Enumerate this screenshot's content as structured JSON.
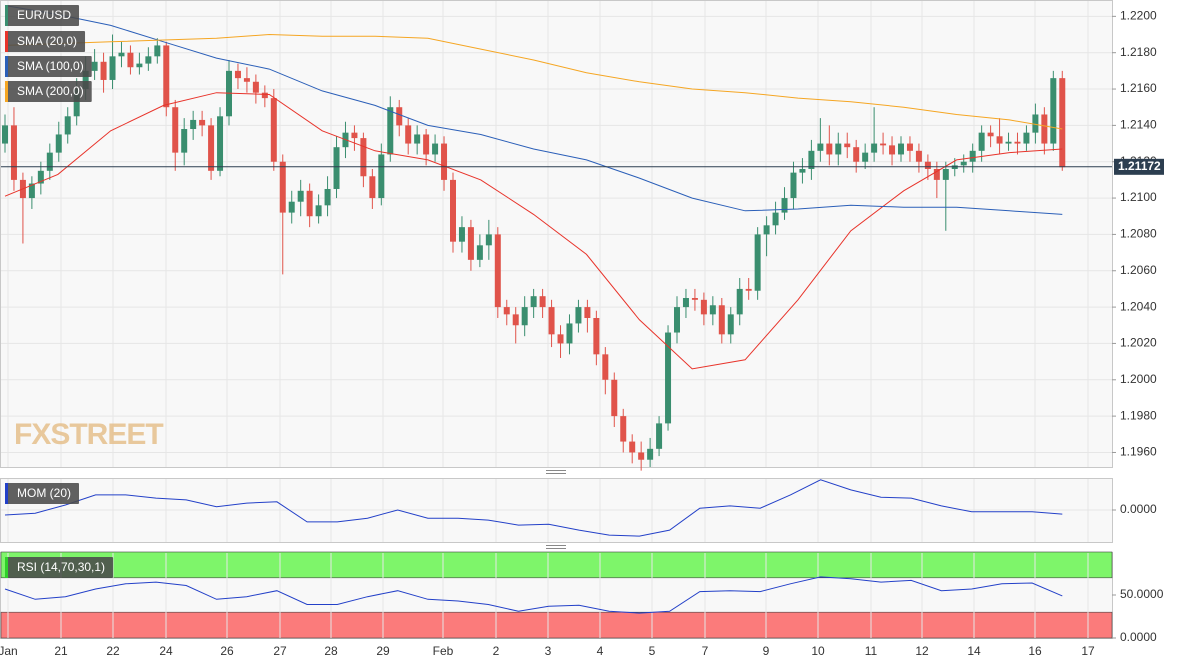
{
  "chart_data": [
    {
      "type": "candlestick",
      "symbol": "EUR/USD",
      "watermark": "FXSTREET",
      "x_labels": [
        "Jan",
        "21",
        "22",
        "24",
        "26",
        "27",
        "28",
        "29",
        "Feb",
        "2",
        "3",
        "4",
        "5",
        "7",
        "9",
        "10",
        "11",
        "12",
        "14",
        "16",
        "17"
      ],
      "up_color": "#3a8e6f",
      "down_color": "#e0534a",
      "open": [
        1.213,
        1.214,
        1.211,
        1.21,
        1.2108,
        1.2115,
        1.2125,
        1.2135,
        1.2145,
        1.216,
        1.217,
        1.2175,
        1.2165,
        1.2178,
        1.218,
        1.2172,
        1.2174,
        1.2178,
        1.2184,
        1.215,
        1.2125,
        1.2138,
        1.2143,
        1.214,
        1.2115,
        1.2145,
        1.217,
        1.2166,
        1.2164,
        1.2158,
        1.2155,
        1.212,
        1.2092,
        1.2098,
        1.2104,
        1.209,
        1.2096,
        1.2105,
        1.2128,
        1.2136,
        1.2133,
        1.2112,
        1.21,
        1.2124,
        1.215,
        1.214,
        1.213,
        1.2135,
        1.2124,
        1.213,
        1.211,
        1.2076,
        1.2084,
        1.2066,
        1.2074,
        1.208,
        1.204,
        1.2036,
        1.203,
        1.204,
        1.2046,
        1.204,
        1.2025,
        1.202,
        1.2031,
        1.204,
        1.2034,
        1.2014,
        1.2,
        1.198,
        1.1966,
        1.196,
        1.1956,
        1.1962,
        1.1976,
        1.2026,
        1.204,
        1.2045,
        1.2044,
        1.2036,
        1.2041,
        1.2025,
        1.2036,
        1.205,
        1.2049,
        1.208,
        1.2085,
        1.2092,
        1.21,
        1.2114,
        1.2116,
        1.2126,
        1.213,
        1.2124,
        1.213,
        1.2128,
        1.212,
        1.2125,
        1.213,
        1.2129,
        1.2124,
        1.213,
        1.2126,
        1.212,
        1.2116,
        1.211,
        1.2116,
        1.2118,
        1.212,
        1.2126,
        1.2136,
        1.2134,
        1.213,
        1.2131,
        1.213,
        1.2136,
        1.2146,
        1.213,
        1.2166
      ],
      "high": [
        1.2146,
        1.215,
        1.2114,
        1.2112,
        1.212,
        1.213,
        1.2142,
        1.215,
        1.2166,
        1.2178,
        1.2182,
        1.218,
        1.219,
        1.2186,
        1.2184,
        1.218,
        1.2183,
        1.2188,
        1.2186,
        1.2154,
        1.2144,
        1.2148,
        1.2148,
        1.2144,
        1.215,
        1.2176,
        1.2174,
        1.2172,
        1.2168,
        1.2162,
        1.216,
        1.2124,
        1.2104,
        1.211,
        1.2108,
        1.2102,
        1.2112,
        1.2134,
        1.2142,
        1.214,
        1.2136,
        1.2116,
        1.213,
        1.2156,
        1.2154,
        1.2144,
        1.214,
        1.2138,
        1.2135,
        1.2134,
        1.2114,
        1.209,
        1.2088,
        1.208,
        1.2088,
        1.2084,
        1.2044,
        1.204,
        1.2046,
        1.205,
        1.205,
        1.2044,
        1.203,
        1.2036,
        1.2044,
        1.2044,
        1.2038,
        1.2018,
        1.2004,
        1.1984,
        1.197,
        1.1966,
        1.1968,
        1.198,
        1.203,
        1.2046,
        1.205,
        1.205,
        1.2048,
        1.2046,
        1.2045,
        1.204,
        1.2056,
        1.2056,
        1.2084,
        1.209,
        1.2098,
        1.2106,
        1.212,
        1.2122,
        1.2132,
        1.2144,
        1.214,
        1.2136,
        1.2136,
        1.2132,
        1.213,
        1.215,
        1.2136,
        1.2134,
        1.2134,
        1.2134,
        1.213,
        1.2124,
        1.212,
        1.212,
        1.2122,
        1.2124,
        1.213,
        1.214,
        1.214,
        1.2144,
        1.2136,
        1.2136,
        1.214,
        1.2152,
        1.215,
        1.217,
        1.217
      ],
      "low": [
        1.2125,
        1.2104,
        1.2075,
        1.2094,
        1.2102,
        1.211,
        1.212,
        1.213,
        1.214,
        1.2154,
        1.2165,
        1.2158,
        1.216,
        1.2172,
        1.2168,
        1.2168,
        1.217,
        1.2174,
        1.2145,
        1.2115,
        1.2118,
        1.2132,
        1.2134,
        1.211,
        1.2112,
        1.214,
        1.216,
        1.2158,
        1.2152,
        1.215,
        1.2115,
        1.2058,
        1.2086,
        1.209,
        1.2084,
        1.2086,
        1.209,
        1.21,
        1.2122,
        1.2126,
        1.2106,
        1.2094,
        1.2096,
        1.212,
        1.2134,
        1.2124,
        1.2124,
        1.2118,
        1.212,
        1.2104,
        1.207,
        1.207,
        1.206,
        1.2062,
        1.2066,
        1.2034,
        1.203,
        1.202,
        1.2024,
        1.2034,
        1.2034,
        1.2018,
        1.2012,
        1.2014,
        1.2026,
        1.2026,
        1.2008,
        1.1992,
        1.1974,
        1.196,
        1.1954,
        1.195,
        1.1952,
        1.1958,
        1.1972,
        1.202,
        1.2034,
        1.2038,
        1.203,
        1.203,
        1.202,
        1.202,
        1.203,
        1.2044,
        1.2044,
        1.2068,
        1.208,
        1.2088,
        1.2094,
        1.2108,
        1.211,
        1.212,
        1.2118,
        1.2118,
        1.2122,
        1.2114,
        1.2116,
        1.212,
        1.2124,
        1.2118,
        1.212,
        1.212,
        1.2114,
        1.211,
        1.21,
        1.2082,
        1.2112,
        1.2114,
        1.2114,
        1.212,
        1.2128,
        1.2124,
        1.2126,
        1.2124,
        1.2126,
        1.213,
        1.2124,
        1.2126,
        1.2115
      ],
      "close": [
        1.214,
        1.211,
        1.21,
        1.2108,
        1.2115,
        1.2125,
        1.2135,
        1.2145,
        1.216,
        1.217,
        1.2175,
        1.2165,
        1.2178,
        1.218,
        1.2172,
        1.2174,
        1.2178,
        1.2184,
        1.215,
        1.2125,
        1.2138,
        1.2143,
        1.214,
        1.2115,
        1.2145,
        1.217,
        1.2166,
        1.2164,
        1.2158,
        1.2155,
        1.212,
        1.2092,
        1.2098,
        1.2104,
        1.209,
        1.2096,
        1.2105,
        1.2128,
        1.2136,
        1.2133,
        1.2112,
        1.21,
        1.2124,
        1.215,
        1.214,
        1.213,
        1.2135,
        1.2124,
        1.213,
        1.211,
        1.2076,
        1.2084,
        1.2066,
        1.2074,
        1.208,
        1.204,
        1.2036,
        1.203,
        1.204,
        1.2046,
        1.204,
        1.2025,
        1.202,
        1.2031,
        1.204,
        1.2034,
        1.2014,
        1.2,
        1.198,
        1.1966,
        1.196,
        1.1956,
        1.1962,
        1.1976,
        1.2026,
        1.204,
        1.2045,
        1.2044,
        1.2036,
        1.2041,
        1.2025,
        1.2036,
        1.205,
        1.2049,
        1.208,
        1.2085,
        1.2092,
        1.21,
        1.2114,
        1.2116,
        1.2126,
        1.213,
        1.2124,
        1.213,
        1.2128,
        1.212,
        1.2125,
        1.213,
        1.2129,
        1.2124,
        1.213,
        1.2126,
        1.212,
        1.2116,
        1.211,
        1.2116,
        1.2118,
        1.212,
        1.2126,
        1.2136,
        1.2134,
        1.213,
        1.2131,
        1.213,
        1.2136,
        1.2146,
        1.213,
        1.2166,
        1.2117
      ],
      "series": [
        {
          "name": "SMA (20,0)",
          "color": "#e8332a",
          "values": [
            1.2101,
            1.2113,
            1.2137,
            1.2151,
            1.2158,
            1.2157,
            1.2137,
            1.2126,
            1.2121,
            1.211,
            1.2091,
            1.2069,
            1.2033,
            1.2006,
            1.2011,
            1.2044,
            1.2082,
            1.2104,
            1.2121,
            1.2125,
            1.2127
          ]
        },
        {
          "name": "SMA (100,0)",
          "color": "#2b5fb8",
          "values": [
            1.2206,
            1.2201,
            1.2195,
            1.2186,
            1.2177,
            1.2171,
            1.2159,
            1.2151,
            1.214,
            1.2135,
            1.2127,
            1.2121,
            1.2111,
            1.21,
            1.2093,
            1.2094,
            1.2096,
            1.2095,
            1.2095,
            1.2093,
            1.2091
          ]
        },
        {
          "name": "SMA (200,0)",
          "color": "#f5a623",
          "values": [
            1.2184,
            1.2185,
            1.2186,
            1.2187,
            1.2188,
            1.219,
            1.2189,
            1.2189,
            1.2188,
            1.2182,
            1.2176,
            1.2169,
            1.2164,
            1.216,
            1.2158,
            1.2155,
            1.2153,
            1.215,
            1.2146,
            1.2143,
            1.2138
          ]
        }
      ],
      "last_price": 1.21172,
      "ylim": [
        1.1952,
        1.2209
      ],
      "yticks": [
        {
          "value": 1.196,
          "label": "1.1960"
        },
        {
          "value": 1.198,
          "label": "1.1980"
        },
        {
          "value": 1.2,
          "label": "1.2000"
        },
        {
          "value": 1.202,
          "label": "1.2020"
        },
        {
          "value": 1.204,
          "label": "1.2040"
        },
        {
          "value": 1.206,
          "label": "1.2060"
        },
        {
          "value": 1.208,
          "label": "1.2080"
        },
        {
          "value": 1.21,
          "label": "1.2100"
        },
        {
          "value": 1.212,
          "label": "1.2120"
        },
        {
          "value": 1.214,
          "label": "1.2140"
        },
        {
          "value": 1.216,
          "label": "1.2160"
        },
        {
          "value": 1.218,
          "label": "1.2180"
        },
        {
          "value": 1.22,
          "label": "1.2200"
        }
      ],
      "grid": true
    },
    {
      "type": "line",
      "series": [
        {
          "name": "MOM (20)",
          "color": "#2340c8",
          "values": [
            -0.0011,
            -0.0007,
            0.0011,
            0.0033,
            0.0033,
            0.0026,
            0.0022,
            0.0007,
            0.0015,
            0.0018,
            -0.0026,
            -0.0026,
            -0.0018,
            0.0,
            -0.0018,
            -0.0018,
            -0.0022,
            -0.0033,
            -0.0031,
            -0.0044,
            -0.0055,
            -0.0057,
            -0.0044,
            0.0004,
            0.0009,
            0.0004,
            0.0033,
            0.0066,
            0.0044,
            0.0028,
            0.0026,
            0.0009,
            -0.0004,
            -0.0004,
            -0.0004,
            -0.0009
          ]
        }
      ],
      "ylim": [
        -0.007,
        0.007
      ],
      "yticks": [
        {
          "value": 0,
          "label": "0.0000"
        }
      ],
      "grid": true
    },
    {
      "type": "line",
      "series": [
        {
          "name": "RSI (14,70,30,1)",
          "color": "#2340c8",
          "values": [
            57,
            45,
            48,
            57,
            63,
            65,
            61,
            45,
            48,
            55,
            39,
            39,
            48,
            55,
            45,
            43,
            39,
            31,
            37,
            38,
            31,
            29,
            31,
            54,
            55,
            54,
            63,
            71,
            69,
            65,
            67,
            55,
            57,
            63,
            64,
            49
          ]
        }
      ],
      "bands": [
        {
          "from": 70,
          "to": 100,
          "color": "#7ef56a"
        },
        {
          "from": 0,
          "to": 30,
          "color": "#fb7b7b"
        }
      ],
      "legend_color": "#2fd02a",
      "ylim": [
        0,
        100
      ],
      "yticks": [
        {
          "value": 0,
          "label": "0.0000"
        },
        {
          "value": 50,
          "label": "50.0000"
        }
      ],
      "grid": true
    }
  ]
}
